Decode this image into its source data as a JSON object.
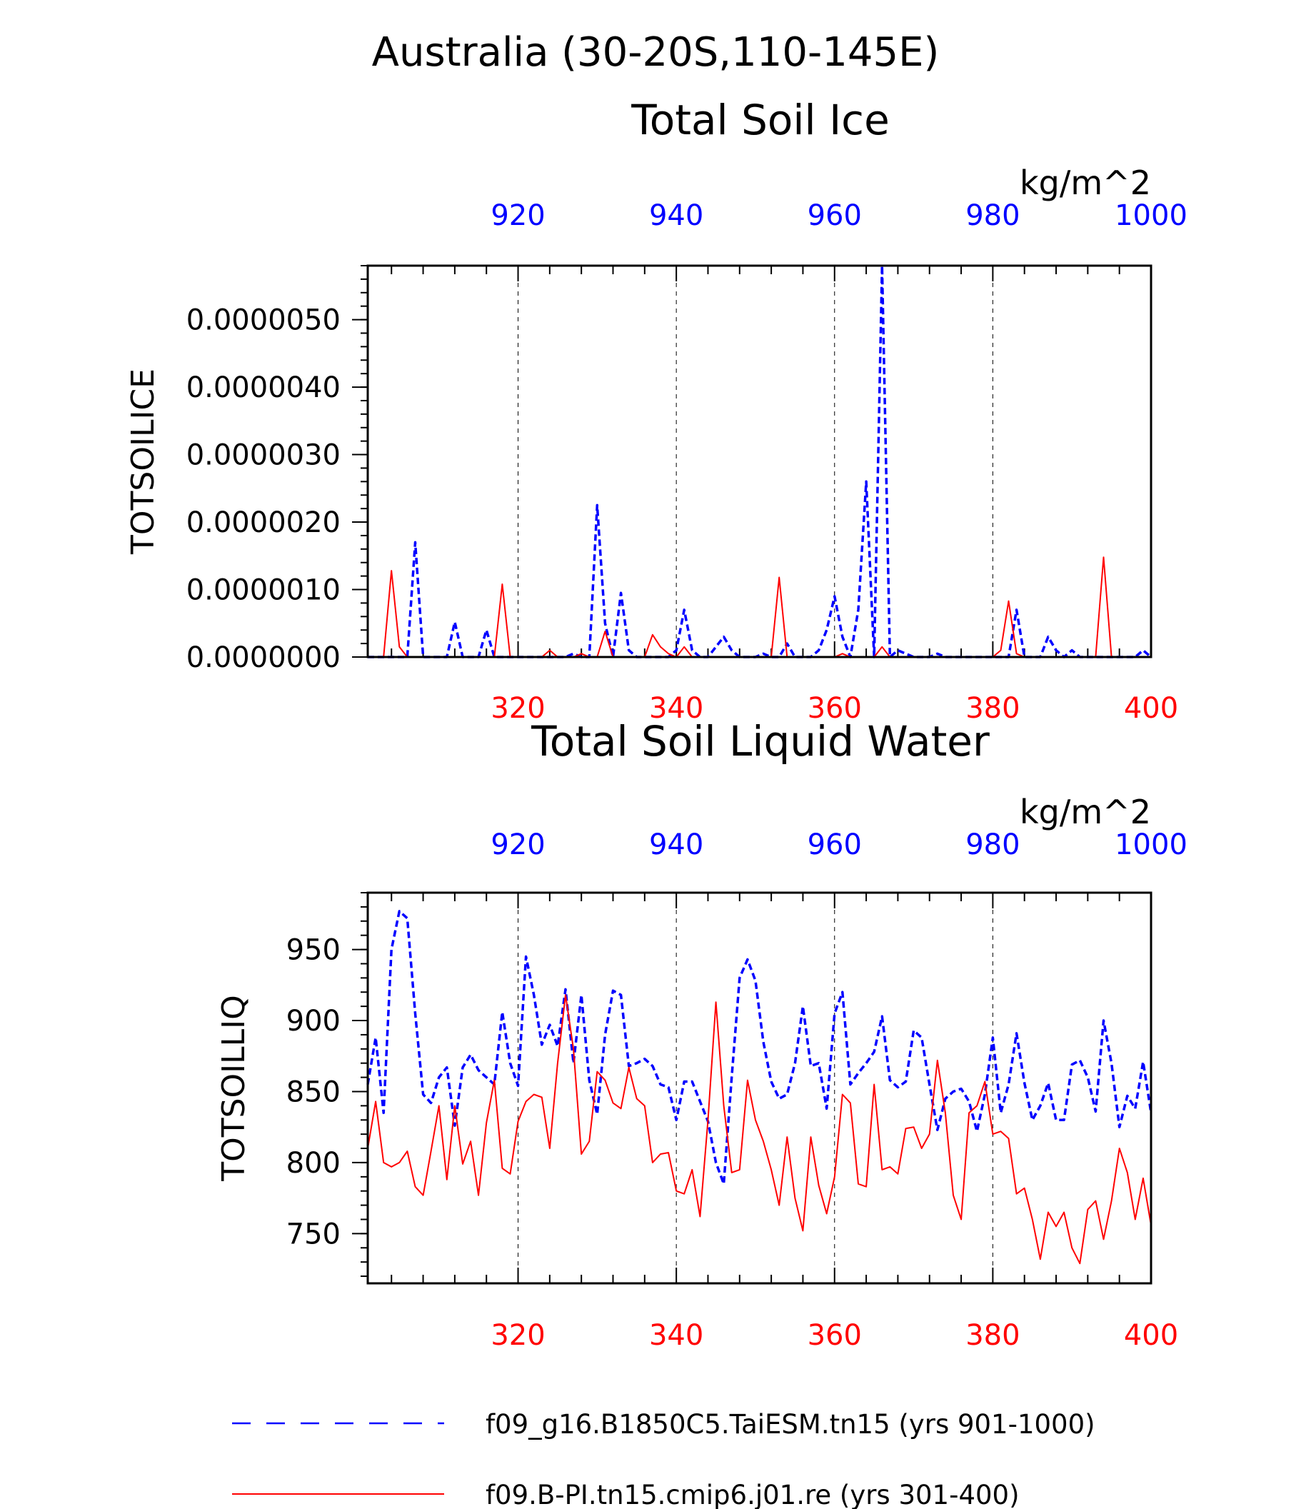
{
  "page": {
    "title": "Australia (30-20S,110-145E)"
  },
  "colors": {
    "series_a": "#0000ff",
    "series_b": "#ff0000",
    "axis": "#000000",
    "grid": "#000000"
  },
  "chart_data": [
    {
      "type": "line",
      "title": "Total Soil Ice",
      "units": "kg/m^2",
      "ylabel": "TOTSOILICE",
      "ylim": [
        0,
        5.8e-06
      ],
      "ytick_values": [
        0,
        1e-06,
        2e-06,
        3e-06,
        4e-06,
        5e-06
      ],
      "ytick_labels": [
        "0.0000000",
        "0.0000010",
        "0.0000020",
        "0.0000030",
        "0.0000040",
        "0.0000050"
      ],
      "x_bottom": {
        "range": [
          301,
          400
        ],
        "ticks": [
          320,
          340,
          360,
          380,
          400
        ],
        "tick_labels": [
          "320",
          "340",
          "360",
          "380",
          "400"
        ]
      },
      "x_top": {
        "range": [
          901,
          1000
        ],
        "ticks": [
          920,
          940,
          960,
          980,
          1000
        ],
        "tick_labels": [
          "920",
          "940",
          "960",
          "980",
          "1000"
        ]
      },
      "grid": "vertical dashed",
      "series": [
        {
          "name": "f09_g16.B1850C5.TaiESM.tn15 (yrs 901-1000)",
          "axis": "top",
          "style": "dashed",
          "x": [
            901,
            902,
            903,
            904,
            905,
            906,
            907,
            908,
            909,
            910,
            911,
            912,
            913,
            914,
            915,
            916,
            917,
            918,
            919,
            920,
            921,
            922,
            923,
            924,
            925,
            926,
            927,
            928,
            929,
            930,
            931,
            932,
            933,
            934,
            935,
            936,
            937,
            938,
            939,
            940,
            941,
            942,
            943,
            944,
            945,
            946,
            947,
            948,
            949,
            950,
            951,
            952,
            953,
            954,
            955,
            956,
            957,
            958,
            959,
            960,
            961,
            962,
            963,
            964,
            965,
            966,
            967,
            968,
            969,
            970,
            971,
            972,
            973,
            974,
            975,
            976,
            977,
            978,
            979,
            980,
            981,
            982,
            983,
            984,
            985,
            986,
            987,
            988,
            989,
            990,
            991,
            992,
            993,
            994,
            995,
            996,
            997,
            998,
            999,
            1000
          ],
          "values": [
            0,
            0,
            0,
            0,
            0,
            0,
            1.7e-06,
            0,
            0,
            0,
            0,
            5.2e-07,
            0,
            0,
            0,
            4e-07,
            0,
            0,
            0,
            0,
            0,
            0,
            0,
            0,
            0,
            0,
            5e-08,
            0,
            0,
            2.25e-06,
            5e-07,
            0,
            9.5e-07,
            1e-07,
            0,
            0,
            0,
            0,
            0,
            1e-07,
            7e-07,
            1e-07,
            0,
            0,
            1.5e-07,
            3e-07,
            1e-07,
            0,
            0,
            0,
            5e-08,
            0,
            0,
            2e-07,
            0,
            0,
            0,
            1e-07,
            4e-07,
            9e-07,
            3e-07,
            0,
            7e-07,
            2.6e-06,
            0,
            5.8e-06,
            0,
            1e-07,
            5e-08,
            0,
            0,
            0,
            5e-08,
            0,
            0,
            0,
            0,
            0,
            0,
            0,
            0,
            0,
            7e-07,
            0,
            0,
            0,
            3e-07,
            1e-07,
            0,
            1e-07,
            0,
            0,
            0,
            0,
            0,
            0,
            0,
            0,
            1e-07,
            0
          ]
        },
        {
          "name": "f09.B-PI.tn15.cmip6.j01.re (yrs 301-400)",
          "axis": "bottom",
          "style": "solid",
          "x": [
            301,
            302,
            303,
            304,
            305,
            306,
            307,
            308,
            309,
            310,
            311,
            312,
            313,
            314,
            315,
            316,
            317,
            318,
            319,
            320,
            321,
            322,
            323,
            324,
            325,
            326,
            327,
            328,
            329,
            330,
            331,
            332,
            333,
            334,
            335,
            336,
            337,
            338,
            339,
            340,
            341,
            342,
            343,
            344,
            345,
            346,
            347,
            348,
            349,
            350,
            351,
            352,
            353,
            354,
            355,
            356,
            357,
            358,
            359,
            360,
            361,
            362,
            363,
            364,
            365,
            366,
            367,
            368,
            369,
            370,
            371,
            372,
            373,
            374,
            375,
            376,
            377,
            378,
            379,
            380,
            381,
            382,
            383,
            384,
            385,
            386,
            387,
            388,
            389,
            390,
            391,
            392,
            393,
            394,
            395,
            396,
            397,
            398,
            399,
            400
          ],
          "values": [
            0,
            0,
            0,
            1.28e-06,
            1.5e-07,
            0,
            0,
            0,
            0,
            0,
            0,
            0,
            0,
            0,
            0,
            0,
            0,
            1.08e-06,
            0,
            0,
            0,
            0,
            0,
            1e-07,
            0,
            0,
            0,
            5e-08,
            0,
            0,
            3.8e-07,
            0,
            0,
            0,
            0,
            0,
            3.3e-07,
            1.5e-07,
            5e-08,
            0,
            1.5e-07,
            0,
            0,
            0,
            0,
            0,
            0,
            0,
            0,
            0,
            0,
            0,
            1.18e-06,
            0,
            0,
            0,
            0,
            0,
            0,
            0,
            5e-08,
            0,
            0,
            0,
            0,
            1.5e-07,
            0,
            0,
            0,
            0,
            0,
            0,
            0,
            0,
            0,
            0,
            0,
            0,
            0,
            0,
            1e-07,
            8.3e-07,
            5e-08,
            0,
            0,
            0,
            0,
            0,
            0,
            0,
            0,
            0,
            0,
            1.48e-06,
            0,
            0,
            0,
            0,
            0,
            0
          ]
        }
      ]
    },
    {
      "type": "line",
      "title": "Total Soil Liquid Water",
      "units": "kg/m^2",
      "ylabel": "TOTSOILLIQ",
      "ylim": [
        715,
        990
      ],
      "ytick_values": [
        750,
        800,
        850,
        900,
        950
      ],
      "ytick_labels": [
        "750",
        "800",
        "850",
        "900",
        "950"
      ],
      "x_bottom": {
        "range": [
          301,
          400
        ],
        "ticks": [
          320,
          340,
          360,
          380,
          400
        ],
        "tick_labels": [
          "320",
          "340",
          "360",
          "380",
          "400"
        ]
      },
      "x_top": {
        "range": [
          901,
          1000
        ],
        "ticks": [
          920,
          940,
          960,
          980,
          1000
        ],
        "tick_labels": [
          "920",
          "940",
          "960",
          "980",
          "1000"
        ]
      },
      "grid": "vertical dashed",
      "series": [
        {
          "name": "f09_g16.B1850C5.TaiESM.tn15 (yrs 901-1000)",
          "axis": "top",
          "style": "dashed",
          "x": [
            901,
            902,
            903,
            904,
            905,
            906,
            907,
            908,
            909,
            910,
            911,
            912,
            913,
            914,
            915,
            916,
            917,
            918,
            919,
            920,
            921,
            922,
            923,
            924,
            925,
            926,
            927,
            928,
            929,
            930,
            931,
            932,
            933,
            934,
            935,
            936,
            937,
            938,
            939,
            940,
            941,
            942,
            943,
            944,
            945,
            946,
            947,
            948,
            949,
            950,
            951,
            952,
            953,
            954,
            955,
            956,
            957,
            958,
            959,
            960,
            961,
            962,
            963,
            964,
            965,
            966,
            967,
            968,
            969,
            970,
            971,
            972,
            973,
            974,
            975,
            976,
            977,
            978,
            979,
            980,
            981,
            982,
            983,
            984,
            985,
            986,
            987,
            988,
            989,
            990,
            991,
            992,
            993,
            994,
            995,
            996,
            997,
            998,
            999,
            1000
          ],
          "values": [
            855,
            888,
            835,
            950,
            977,
            972,
            905,
            848,
            842,
            860,
            867,
            826,
            867,
            876,
            865,
            860,
            855,
            906,
            870,
            854,
            945,
            918,
            883,
            897,
            882,
            922,
            870,
            918,
            858,
            834,
            890,
            921,
            918,
            868,
            870,
            873,
            868,
            855,
            853,
            830,
            857,
            857,
            843,
            829,
            800,
            785,
            860,
            930,
            943,
            928,
            885,
            857,
            845,
            848,
            870,
            910,
            868,
            870,
            838,
            905,
            920,
            855,
            863,
            870,
            878,
            903,
            858,
            853,
            857,
            893,
            888,
            855,
            823,
            845,
            850,
            852,
            843,
            822,
            848,
            888,
            835,
            855,
            891,
            856,
            830,
            840,
            856,
            830,
            830,
            869,
            872,
            860,
            836,
            900,
            870,
            825,
            847,
            838,
            871,
            835
          ]
        },
        {
          "name": "f09.B-PI.tn15.cmip6.j01.re (yrs 301-400)",
          "axis": "bottom",
          "style": "solid",
          "x": [
            301,
            302,
            303,
            304,
            305,
            306,
            307,
            308,
            309,
            310,
            311,
            312,
            313,
            314,
            315,
            316,
            317,
            318,
            319,
            320,
            321,
            322,
            323,
            324,
            325,
            326,
            327,
            328,
            329,
            330,
            331,
            332,
            333,
            334,
            335,
            336,
            337,
            338,
            339,
            340,
            341,
            342,
            343,
            344,
            345,
            346,
            347,
            348,
            349,
            350,
            351,
            352,
            353,
            354,
            355,
            356,
            357,
            358,
            359,
            360,
            361,
            362,
            363,
            364,
            365,
            366,
            367,
            368,
            369,
            370,
            371,
            372,
            373,
            374,
            375,
            376,
            377,
            378,
            379,
            380,
            381,
            382,
            383,
            384,
            385,
            386,
            387,
            388,
            389,
            390,
            391,
            392,
            393,
            394,
            395,
            396,
            397,
            398,
            399,
            400
          ],
          "values": [
            810,
            843,
            800,
            797,
            800,
            808,
            783,
            777,
            808,
            840,
            788,
            840,
            799,
            815,
            777,
            828,
            858,
            796,
            792,
            829,
            843,
            848,
            846,
            810,
            870,
            918,
            880,
            806,
            815,
            864,
            858,
            842,
            838,
            867,
            845,
            840,
            800,
            806,
            807,
            780,
            778,
            795,
            762,
            830,
            913,
            840,
            793,
            795,
            858,
            830,
            815,
            795,
            770,
            818,
            775,
            752,
            818,
            784,
            764,
            790,
            848,
            842,
            785,
            783,
            855,
            795,
            797,
            792,
            824,
            825,
            810,
            820,
            872,
            835,
            777,
            760,
            835,
            840,
            857,
            820,
            822,
            817,
            778,
            782,
            760,
            732,
            765,
            755,
            765,
            740,
            729,
            767,
            773,
            746,
            773,
            810,
            793,
            760,
            789,
            756
          ]
        }
      ]
    }
  ],
  "legend": {
    "placement": "bottom-left",
    "items": [
      {
        "label": "f09_g16.B1850C5.TaiESM.tn15 (yrs 901-1000)",
        "color": "#0000ff",
        "style": "dashed"
      },
      {
        "label": "f09.B-PI.tn15.cmip6.j01.re (yrs 301-400)",
        "color": "#ff0000",
        "style": "solid"
      }
    ]
  }
}
